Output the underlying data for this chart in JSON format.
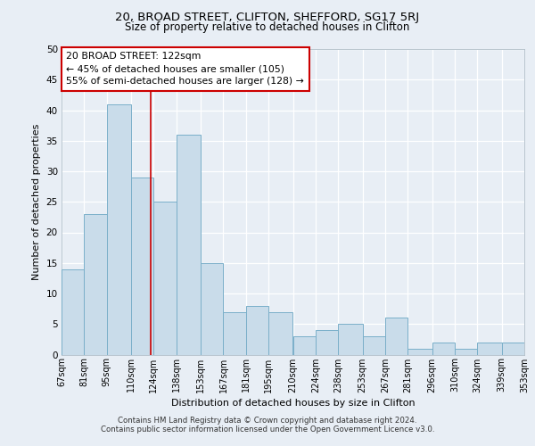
{
  "title1": "20, BROAD STREET, CLIFTON, SHEFFORD, SG17 5RJ",
  "title2": "Size of property relative to detached houses in Clifton",
  "xlabel": "Distribution of detached houses by size in Clifton",
  "ylabel": "Number of detached properties",
  "bins": [
    67,
    81,
    95,
    110,
    124,
    138,
    153,
    167,
    181,
    195,
    210,
    224,
    238,
    253,
    267,
    281,
    296,
    310,
    324,
    339,
    353
  ],
  "counts": [
    14,
    23,
    41,
    29,
    25,
    36,
    15,
    7,
    8,
    7,
    3,
    4,
    5,
    3,
    6,
    1,
    2,
    1,
    2,
    2
  ],
  "bin_labels": [
    "67sqm",
    "81sqm",
    "95sqm",
    "110sqm",
    "124sqm",
    "138sqm",
    "153sqm",
    "167sqm",
    "181sqm",
    "195sqm",
    "210sqm",
    "224sqm",
    "238sqm",
    "253sqm",
    "267sqm",
    "281sqm",
    "296sqm",
    "310sqm",
    "324sqm",
    "339sqm",
    "353sqm"
  ],
  "bar_fill": "#c9dcea",
  "bar_edge": "#7aafc9",
  "vline_x": 122,
  "vline_color": "#cc0000",
  "annotation_title": "20 BROAD STREET: 122sqm",
  "annotation_line1": "← 45% of detached houses are smaller (105)",
  "annotation_line2": "55% of semi-detached houses are larger (128) →",
  "annotation_box_edge": "#cc0000",
  "ylim": [
    0,
    50
  ],
  "yticks": [
    0,
    5,
    10,
    15,
    20,
    25,
    30,
    35,
    40,
    45,
    50
  ],
  "background_color": "#e8eef5",
  "plot_bg": "#e8eef5",
  "grid_color": "#ffffff",
  "footnote1": "Contains HM Land Registry data © Crown copyright and database right 2024.",
  "footnote2": "Contains public sector information licensed under the Open Government Licence v3.0."
}
